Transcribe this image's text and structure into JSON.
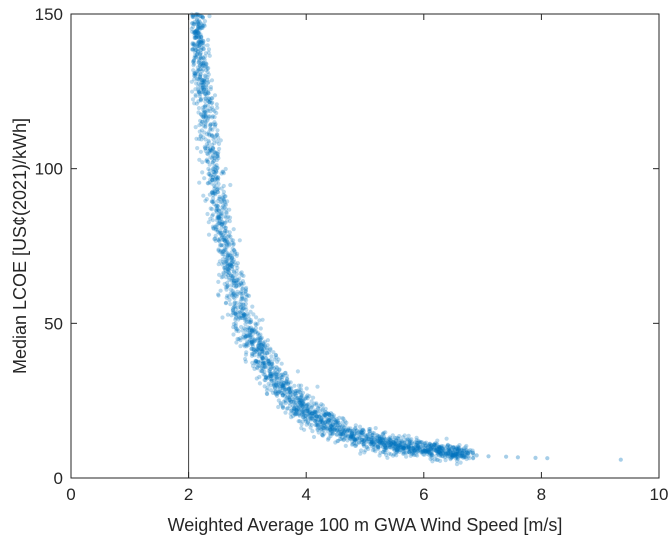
{
  "chart_data": {
    "type": "scatter",
    "xlabel": "Weighted Average 100 m GWA Wind Speed [m/s]",
    "ylabel": "Median LCOE [US¢(2021)/kWh]",
    "xlim": [
      0,
      10
    ],
    "ylim": [
      0,
      150
    ],
    "x_ticks": [
      0,
      2,
      4,
      6,
      8,
      10
    ],
    "x_tick_labels": [
      "0",
      "2",
      "4",
      "6",
      "8",
      "10"
    ],
    "y_ticks": [
      0,
      50,
      100,
      150
    ],
    "y_tick_labels": [
      "0",
      "50",
      "100",
      "150"
    ],
    "grid": false,
    "marker_color": "#0072BD",
    "reference_line": {
      "x": 2,
      "color": "#404040"
    },
    "trend_points": [
      {
        "x": 2.15,
        "y": 150
      },
      {
        "x": 2.2,
        "y": 140
      },
      {
        "x": 2.3,
        "y": 120
      },
      {
        "x": 2.4,
        "y": 102
      },
      {
        "x": 2.5,
        "y": 87
      },
      {
        "x": 2.7,
        "y": 68
      },
      {
        "x": 2.9,
        "y": 54
      },
      {
        "x": 3.2,
        "y": 40
      },
      {
        "x": 3.6,
        "y": 29
      },
      {
        "x": 4.0,
        "y": 22
      },
      {
        "x": 4.5,
        "y": 16
      },
      {
        "x": 5.0,
        "y": 12.5
      },
      {
        "x": 5.5,
        "y": 10.5
      },
      {
        "x": 6.0,
        "y": 9.2
      },
      {
        "x": 6.5,
        "y": 8.2
      },
      {
        "x": 7.0,
        "y": 7.5
      },
      {
        "x": 7.5,
        "y": 7.0
      },
      {
        "x": 8.0,
        "y": 6.6
      },
      {
        "x": 9.4,
        "y": 5.8
      }
    ],
    "outliers": [
      {
        "x": 6.9,
        "y": 7.3
      },
      {
        "x": 7.1,
        "y": 7.0
      },
      {
        "x": 7.4,
        "y": 6.9
      },
      {
        "x": 7.6,
        "y": 6.7
      },
      {
        "x": 7.9,
        "y": 6.5
      },
      {
        "x": 8.1,
        "y": 6.4
      },
      {
        "x": 9.35,
        "y": 5.9
      }
    ]
  }
}
